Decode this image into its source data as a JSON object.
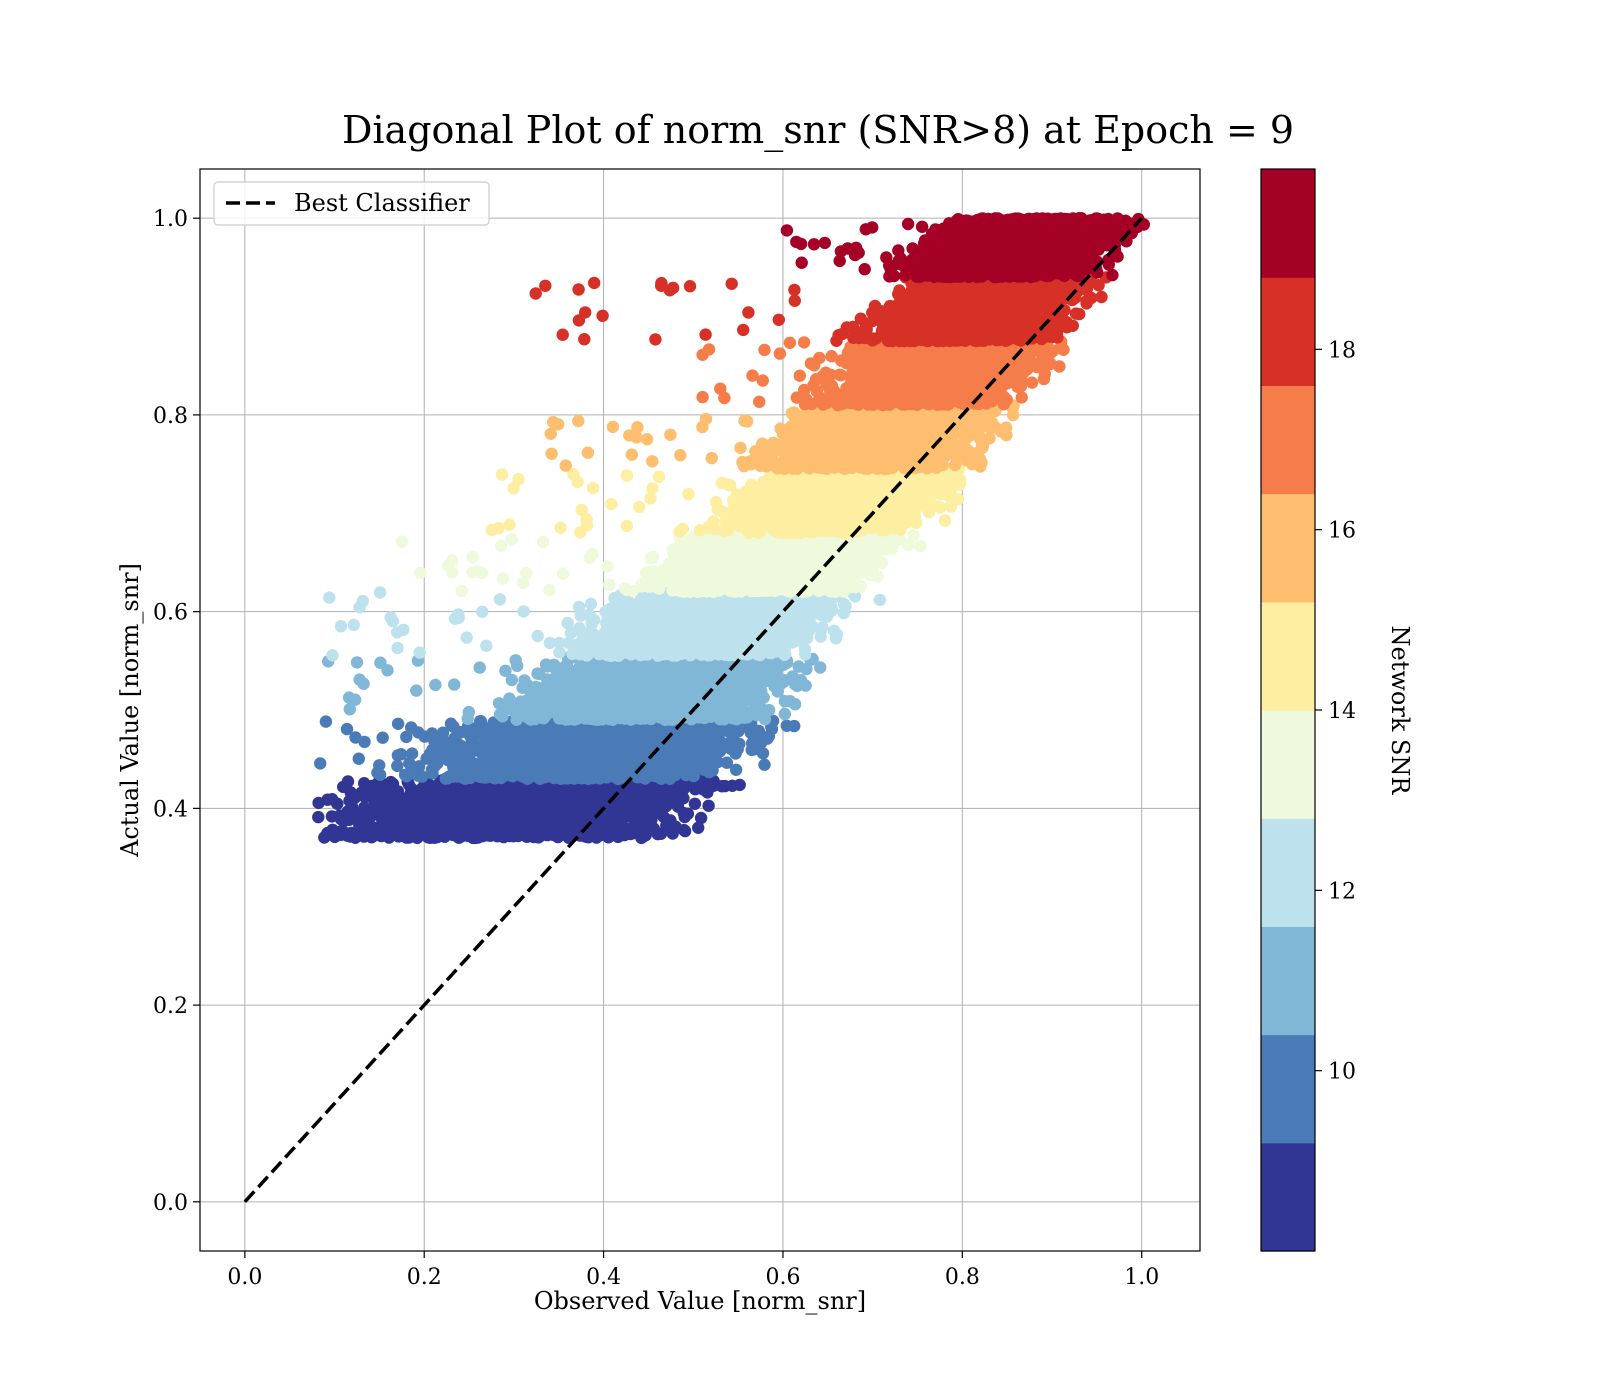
{
  "chart_data": {
    "type": "scatter",
    "title": "Diagonal Plot of norm_snr (SNR>8) at Epoch = 9",
    "xlabel": "Observed Value [norm_snr]",
    "ylabel": "Actual Value [norm_snr]",
    "xlim": [
      -0.05,
      1.065
    ],
    "ylim": [
      -0.05,
      1.05
    ],
    "xticks": [
      "0.0",
      "0.2",
      "0.4",
      "0.6",
      "0.8",
      "1.0"
    ],
    "yticks": [
      "0.0",
      "0.2",
      "0.4",
      "0.6",
      "0.8",
      "1.0"
    ],
    "grid": true,
    "legend": {
      "placement": "top-left",
      "entries": [
        {
          "label": "Best Classifier",
          "style": "dashed",
          "color": "#000000"
        }
      ]
    },
    "reference_line": {
      "name": "Best Classifier",
      "x": [
        0.0,
        1.0
      ],
      "y": [
        0.0,
        1.0
      ]
    },
    "colorbar": {
      "label": "Network SNR",
      "range": [
        8,
        20
      ],
      "ticks": [
        "10",
        "12",
        "14",
        "16",
        "18"
      ],
      "colors": [
        "#313695",
        "#4a7bb7",
        "#80b6d6",
        "#bde2ee",
        "#eff9db",
        "#feeea2",
        "#fdbe70",
        "#f57d4a",
        "#d73027",
        "#a50026"
      ]
    },
    "series": [
      {
        "snr_range": [
          8.0,
          9.2
        ],
        "color": "#313695",
        "y_range": [
          0.37,
          0.43
        ],
        "x_center": 0.3,
        "x_spread": 0.23,
        "x_min": 0.08
      },
      {
        "snr_range": [
          9.2,
          10.4
        ],
        "color": "#4a7bb7",
        "y_range": [
          0.43,
          0.49
        ],
        "x_center": 0.39,
        "x_spread": 0.21,
        "x_min": 0.08
      },
      {
        "snr_range": [
          10.4,
          11.6
        ],
        "color": "#80b6d6",
        "y_range": [
          0.49,
          0.555
        ],
        "x_center": 0.46,
        "x_spread": 0.17,
        "x_min": 0.09
      },
      {
        "snr_range": [
          11.6,
          12.8
        ],
        "color": "#bde2ee",
        "y_range": [
          0.555,
          0.62
        ],
        "x_center": 0.52,
        "x_spread": 0.16,
        "x_min": 0.09
      },
      {
        "snr_range": [
          12.8,
          14.0
        ],
        "color": "#eff9db",
        "y_range": [
          0.62,
          0.68
        ],
        "x_center": 0.59,
        "x_spread": 0.14,
        "x_min": 0.17
      },
      {
        "snr_range": [
          14.0,
          15.2
        ],
        "color": "#feeea2",
        "y_range": [
          0.68,
          0.745
        ],
        "x_center": 0.66,
        "x_spread": 0.14,
        "x_min": 0.25
      },
      {
        "snr_range": [
          15.2,
          16.4
        ],
        "color": "#fdbe70",
        "y_range": [
          0.745,
          0.81
        ],
        "x_center": 0.71,
        "x_spread": 0.14,
        "x_min": 0.34
      },
      {
        "snr_range": [
          16.4,
          17.6
        ],
        "color": "#f57d4a",
        "y_range": [
          0.81,
          0.875
        ],
        "x_center": 0.77,
        "x_spread": 0.13,
        "x_min": 0.5
      },
      {
        "snr_range": [
          17.6,
          18.8
        ],
        "color": "#d73027",
        "y_range": [
          0.875,
          0.94
        ],
        "x_center": 0.82,
        "x_spread": 0.13,
        "x_min": 0.31
      },
      {
        "snr_range": [
          18.8,
          20.0
        ],
        "color": "#a50026",
        "y_range": [
          0.94,
          1.0
        ],
        "x_center": 0.86,
        "x_spread": 0.13,
        "x_min": 0.6
      }
    ]
  }
}
